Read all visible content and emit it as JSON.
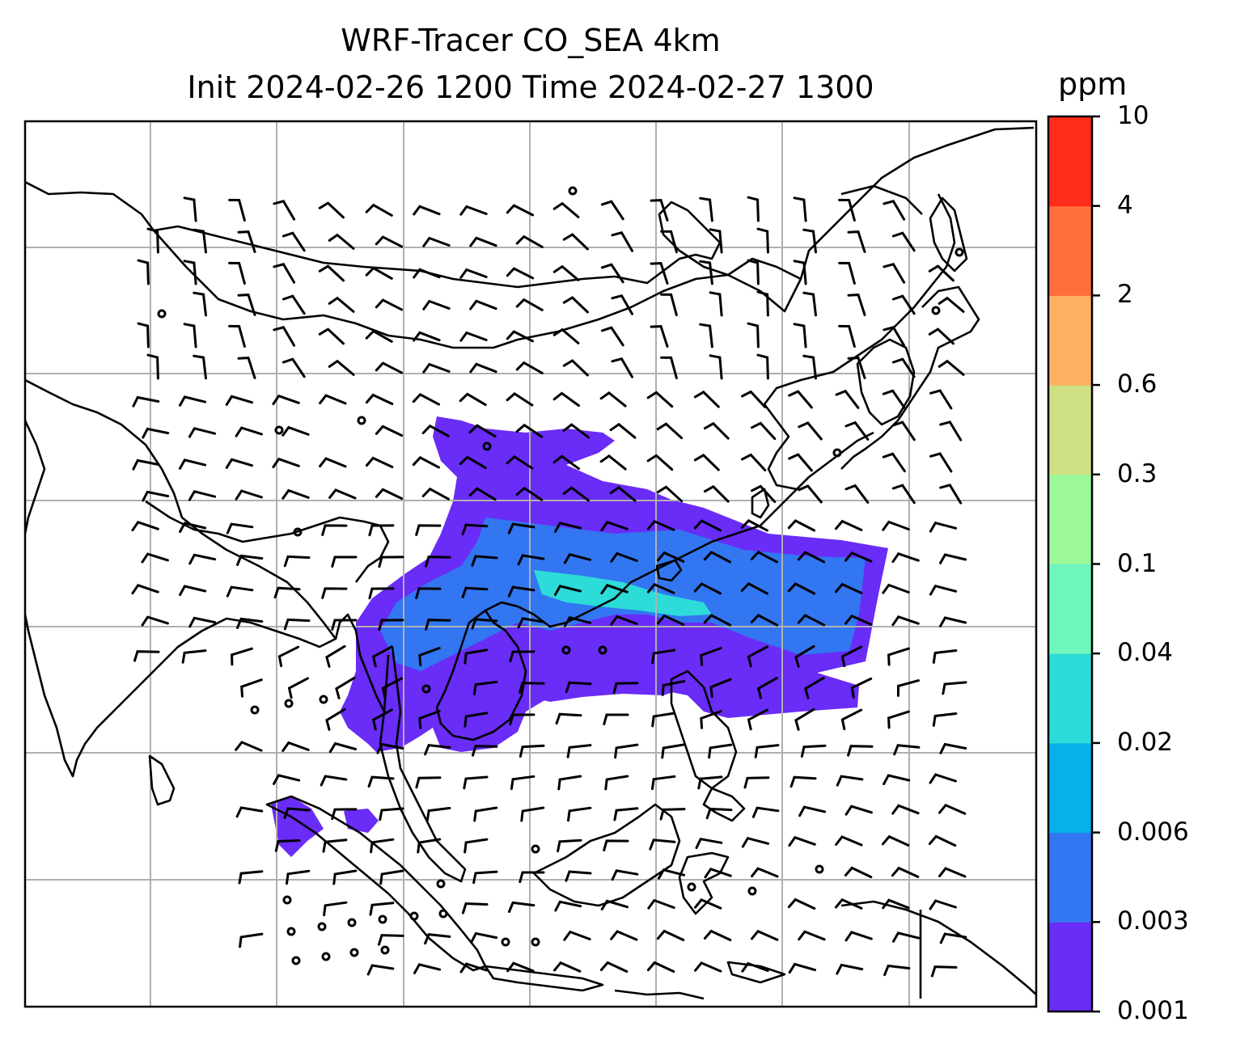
{
  "title": {
    "line1": "WRF-Tracer CO_SEA 4km",
    "line2": "Init 2024-02-26 1200 Time 2024-02-27 1300"
  },
  "colorbar": {
    "unit": "ppm",
    "levels": [
      "0.001",
      "0.003",
      "0.006",
      "0.02",
      "0.04",
      "0.1",
      "0.3",
      "0.6",
      "2",
      "4",
      "10"
    ],
    "colors": [
      "#6a2cf7",
      "#3276f2",
      "#05b1ea",
      "#2ddbd8",
      "#6ef6bd",
      "#9bf99a",
      "#cde083",
      "#feb060",
      "#fe6f3c",
      "#fe2c1a"
    ]
  },
  "map": {
    "gridline_color": "#b0b0b0",
    "coastline_color": "#000000",
    "plume_colors": [
      "#6a2cf7",
      "#3276f2",
      "#05b1ea",
      "#2ddbd8"
    ]
  }
}
